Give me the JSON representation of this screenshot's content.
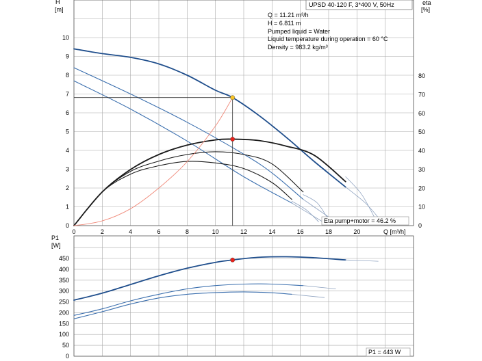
{
  "header": {
    "title": "UPSD 40-120 F, 3*400 V, 50Hz"
  },
  "info": {
    "lines": [
      "Q = 11.21 m³/h",
      "H = 6.811 m",
      "Pumped liquid = Water",
      "Liquid temperature during operation = 60 °C",
      "Density = 983.2 kg/m³"
    ],
    "eta_label": "Eta pump+motor = 46.2 %",
    "p1_label": "P1 = 443 W"
  },
  "colors": {
    "main_curve": "#1f4e8c",
    "speed_curve": "#3b6fae",
    "eta_curve": "#1a1a1a",
    "system_curve": "#f08a7a",
    "duty_point_head": "#f7c325",
    "duty_point_marker": "#e8231c",
    "grid": "#a8a8a8"
  },
  "chart_data": [
    {
      "type": "line",
      "xlabel": "Q [m³/h]",
      "ylabel": "H\n[m]",
      "y2label": "eta\n[%]",
      "xlim": [
        0,
        24
      ],
      "ylim": [
        0,
        11
      ],
      "y2lim": [
        0,
        100
      ],
      "xticks": [
        0,
        2,
        4,
        6,
        8,
        10,
        12,
        14,
        16,
        18,
        20
      ],
      "yticks": [
        0,
        1,
        2,
        3,
        4,
        5,
        6,
        7,
        8,
        9,
        10
      ],
      "y2ticks": [
        0,
        10,
        20,
        30,
        40,
        50,
        60,
        70,
        80
      ],
      "grid": true,
      "series": [
        {
          "kind": "head",
          "style": "main",
          "x": [
            0,
            2,
            4,
            6,
            8,
            10,
            11.21,
            13,
            15,
            17,
            19.2
          ],
          "y": [
            9.4,
            9.15,
            8.95,
            8.6,
            8.0,
            7.2,
            6.811,
            5.9,
            4.7,
            3.4,
            2.05
          ]
        },
        {
          "kind": "head",
          "style": "speed",
          "x": [
            0,
            4,
            8,
            12,
            14,
            16.2
          ],
          "y": [
            8.4,
            7.0,
            5.5,
            3.8,
            2.8,
            1.4
          ]
        },
        {
          "kind": "head",
          "style": "speed",
          "x": [
            0,
            4,
            8,
            12,
            15.4
          ],
          "y": [
            7.7,
            6.2,
            4.5,
            2.6,
            1.2
          ]
        },
        {
          "kind": "eta",
          "style": "main",
          "x": [
            0,
            2,
            4,
            6,
            8,
            10,
            11.21,
            13,
            15,
            17,
            19.2
          ],
          "y": [
            0,
            18,
            30,
            38,
            43,
            45.8,
            46.2,
            45.5,
            42.5,
            37.5,
            23.5
          ]
        },
        {
          "kind": "eta",
          "style": "thin",
          "x": [
            0,
            2,
            4,
            6,
            8,
            10,
            12,
            14,
            16.2
          ],
          "y": [
            0,
            18,
            29,
            34.5,
            38,
            39.5,
            38,
            33,
            18
          ]
        },
        {
          "kind": "eta",
          "style": "thin",
          "x": [
            0,
            2,
            4,
            6,
            8,
            10,
            12,
            14,
            15.4
          ],
          "y": [
            0,
            18,
            27.5,
            32,
            34.3,
            33.5,
            30.5,
            23,
            14
          ]
        },
        {
          "kind": "system",
          "style": "system",
          "x": [
            0,
            2,
            4,
            6,
            8,
            10,
            11.21
          ],
          "y": [
            0,
            0.25,
            0.9,
            2.0,
            3.4,
            5.3,
            6.811
          ]
        },
        {
          "kind": "extension",
          "style": "ext",
          "x": [
            16.2,
            18.5
          ],
          "y": [
            1.4,
            0.2
          ]
        },
        {
          "kind": "extension",
          "style": "ext",
          "x": [
            15.4,
            17.7
          ],
          "y": [
            1.2,
            0.15
          ]
        },
        {
          "kind": "extension",
          "style": "ext",
          "x": [
            16.2,
            17.2,
            18.0
          ],
          "y": [
            1.65,
            1.2,
            0.3
          ]
        },
        {
          "kind": "extension",
          "style": "ext",
          "x": [
            15.4,
            16.4,
            17.3
          ],
          "y": [
            1.3,
            0.85,
            0.2
          ]
        },
        {
          "kind": "extension",
          "style": "ext",
          "x": [
            19.2,
            20.3,
            21.2
          ],
          "y": [
            2.6,
            1.7,
            0.5
          ]
        },
        {
          "kind": "extension",
          "style": "ext",
          "x": [
            19.2,
            20.6,
            21.6
          ],
          "y": [
            2.05,
            1.2,
            0.35
          ]
        }
      ],
      "points": [
        {
          "kind": "head",
          "x": 11.21,
          "y": 6.811,
          "color": "#f7c325"
        },
        {
          "kind": "eta",
          "x": 11.21,
          "y": 46.2,
          "color": "#e8231c"
        }
      ]
    },
    {
      "type": "line",
      "xlabel": "",
      "ylabel": "P1\n[W]",
      "xlim": [
        0,
        24
      ],
      "ylim": [
        0,
        500
      ],
      "yticks": [
        0,
        50,
        100,
        150,
        200,
        250,
        300,
        350,
        400,
        450
      ],
      "grid": true,
      "series": [
        {
          "style": "main",
          "x": [
            0,
            2,
            4,
            6,
            8,
            10,
            11.21,
            13,
            15,
            17,
            19.2
          ],
          "y": [
            258,
            290,
            330,
            370,
            405,
            432,
            443,
            455,
            458,
            453,
            443
          ]
        },
        {
          "style": "ext",
          "x": [
            19.2,
            21.5
          ],
          "y": [
            443,
            437
          ]
        },
        {
          "style": "speed",
          "x": [
            0,
            2,
            4,
            6,
            8,
            10,
            12,
            14,
            16.2
          ],
          "y": [
            188,
            218,
            255,
            285,
            310,
            325,
            332,
            332,
            325
          ]
        },
        {
          "style": "ext",
          "x": [
            16.2,
            18.5
          ],
          "y": [
            325,
            310
          ]
        },
        {
          "style": "speed",
          "x": [
            0,
            2,
            4,
            6,
            8,
            10,
            12,
            14,
            15.4
          ],
          "y": [
            172,
            205,
            240,
            268,
            285,
            293,
            296,
            292,
            285
          ]
        },
        {
          "style": "ext",
          "x": [
            15.4,
            17.7
          ],
          "y": [
            285,
            270
          ]
        }
      ],
      "points": [
        {
          "x": 11.21,
          "y": 443,
          "color": "#e8231c"
        }
      ]
    }
  ]
}
